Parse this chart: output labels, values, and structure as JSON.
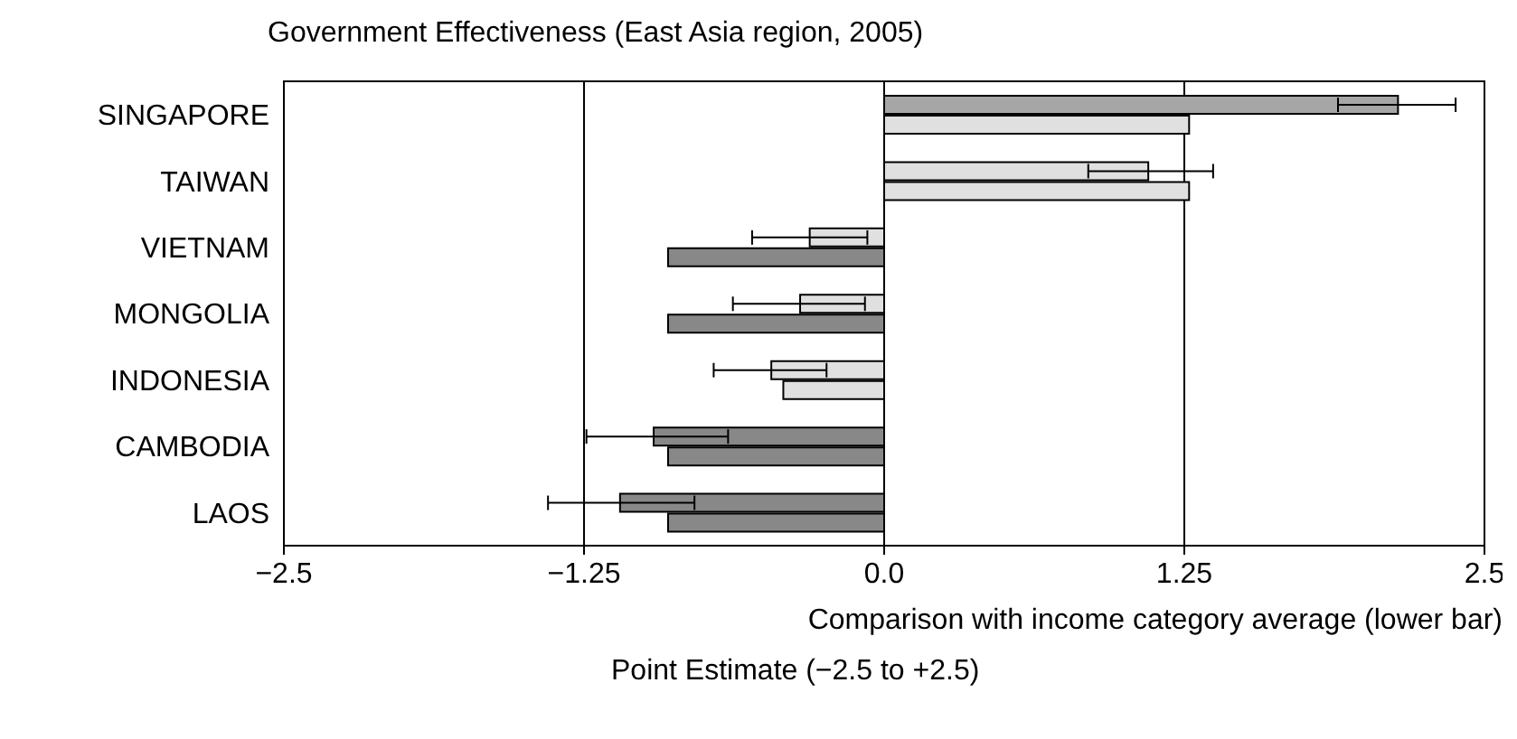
{
  "chart_data": {
    "type": "bar",
    "orientation": "horizontal",
    "title": "Government Effectiveness (East Asia region, 2005)",
    "xlabel": "Point Estimate (−2.5 to +2.5)",
    "annotations": [
      "Comparison with income category average (lower bar)"
    ],
    "categories": [
      "SINGAPORE",
      "TAIWAN",
      "VIETNAM",
      "MONGOLIA",
      "INDONESIA",
      "CAMBODIA",
      "LAOS"
    ],
    "series": [
      {
        "values": [
          2.14,
          1.1,
          -0.31,
          -0.35,
          -0.47,
          -0.96,
          -1.1
        ],
        "colors": [
          "#a6a6a6",
          "#e0e0e0",
          "#e0e0e0",
          "#e0e0e0",
          "#e0e0e0",
          "#888888",
          "#888888"
        ],
        "errors": [
          [
            1.89,
            2.38
          ],
          [
            0.85,
            1.37
          ],
          [
            -0.55,
            -0.07
          ],
          [
            -0.63,
            -0.08
          ],
          [
            -0.71,
            -0.24
          ],
          [
            -1.24,
            -0.65
          ],
          [
            -1.4,
            -0.79
          ]
        ]
      },
      {
        "values": [
          1.27,
          1.27,
          -0.9,
          -0.9,
          -0.42,
          -0.9,
          -0.9
        ],
        "colors": [
          "#e0e0e0",
          "#e0e0e0",
          "#888888",
          "#888888",
          "#e0e0e0",
          "#888888",
          "#888888"
        ]
      }
    ],
    "xlim": [
      -2.5,
      2.5
    ],
    "xticks": [
      {
        "value": -2.5,
        "label": "−2.5"
      },
      {
        "value": -1.25,
        "label": "−1.25"
      },
      {
        "value": 0,
        "label": "0.0"
      },
      1.25,
      2.5
    ],
    "grid": "x",
    "legend": false
  }
}
